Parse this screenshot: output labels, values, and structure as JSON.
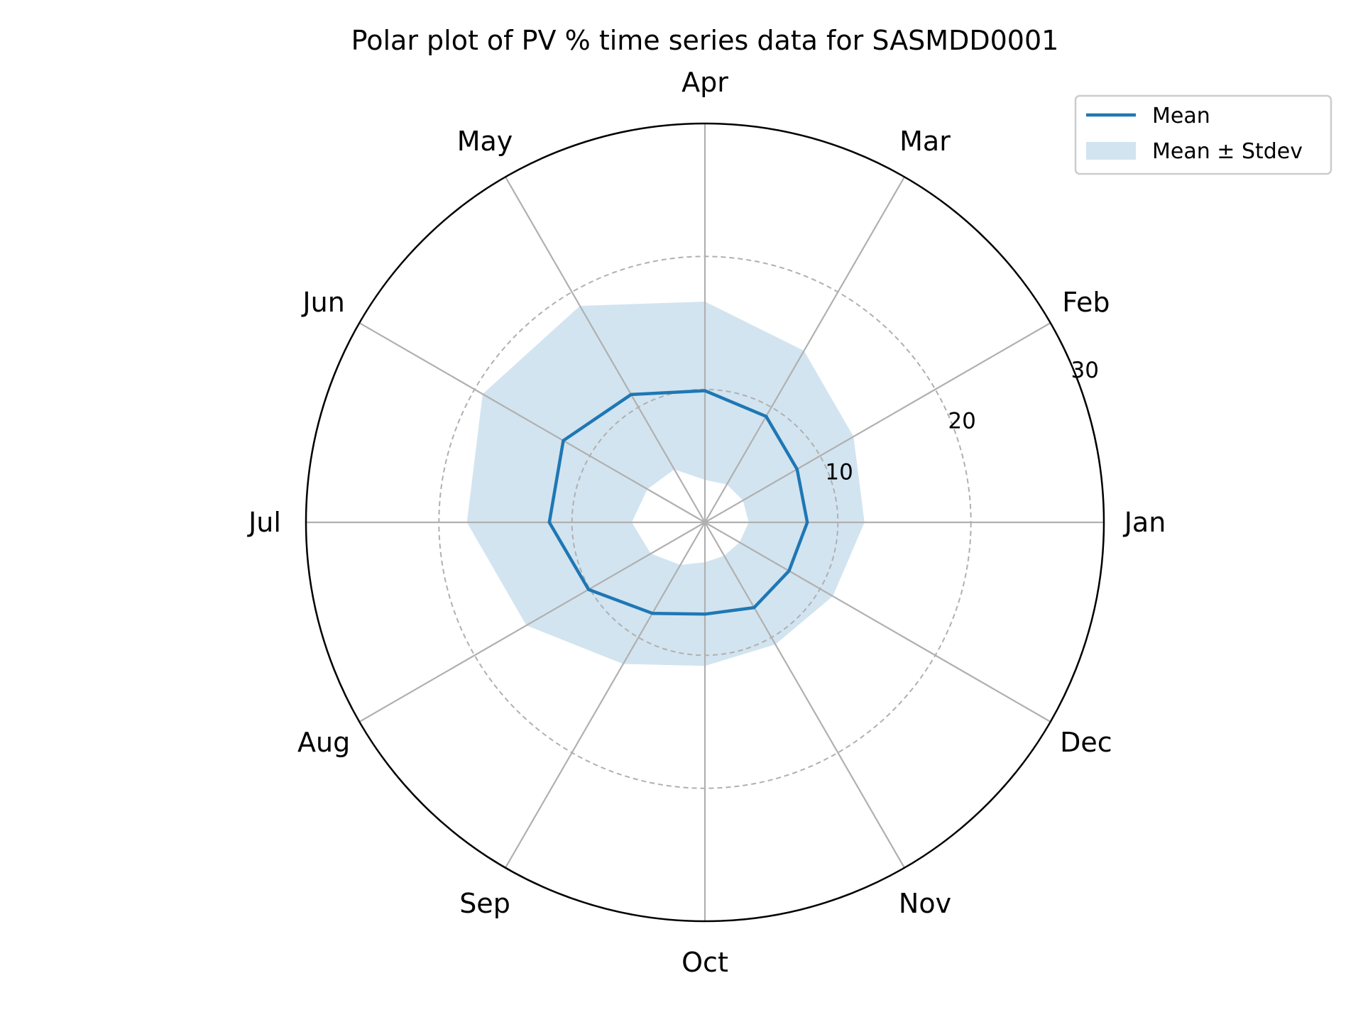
{
  "chart_data": {
    "type": "polar-line",
    "title": "Polar plot of PV % time series data for SASMDD0001",
    "categories": [
      "Jan",
      "Feb",
      "Mar",
      "Apr",
      "May",
      "Jun",
      "Jul",
      "Aug",
      "Sep",
      "Oct",
      "Nov",
      "Dec"
    ],
    "theta_direction": "counterclockwise",
    "theta_zero": "east",
    "rlim": [
      0,
      30
    ],
    "rticks": [
      10,
      20,
      30
    ],
    "rtick_labels": [
      "10",
      "20",
      "30"
    ],
    "series": [
      {
        "name": "Mean",
        "type": "line",
        "values": [
          7.7,
          8.0,
          9.2,
          9.9,
          11.1,
          12.3,
          11.7,
          10.1,
          7.9,
          6.9,
          7.4,
          7.3
        ]
      },
      {
        "name": "Mean ± Stdev",
        "type": "band",
        "lower": [
          3.3,
          3.3,
          3.3,
          3.2,
          4.6,
          5.0,
          5.5,
          4.7,
          3.7,
          3.0,
          2.9,
          3.0
        ],
        "upper": [
          12.0,
          12.9,
          14.9,
          16.6,
          18.8,
          19.3,
          17.9,
          15.5,
          12.3,
          10.8,
          10.6,
          11.1
        ]
      }
    ],
    "grid": true,
    "legend": {
      "position": "top-right",
      "entries": [
        "Mean",
        "Mean ± Stdev"
      ]
    },
    "colors": {
      "mean_line": "#1f77b4",
      "band_fill": "#1f77b4",
      "band_opacity": 0.2,
      "grid": "#b0b0b0",
      "frame": "#000000"
    }
  }
}
